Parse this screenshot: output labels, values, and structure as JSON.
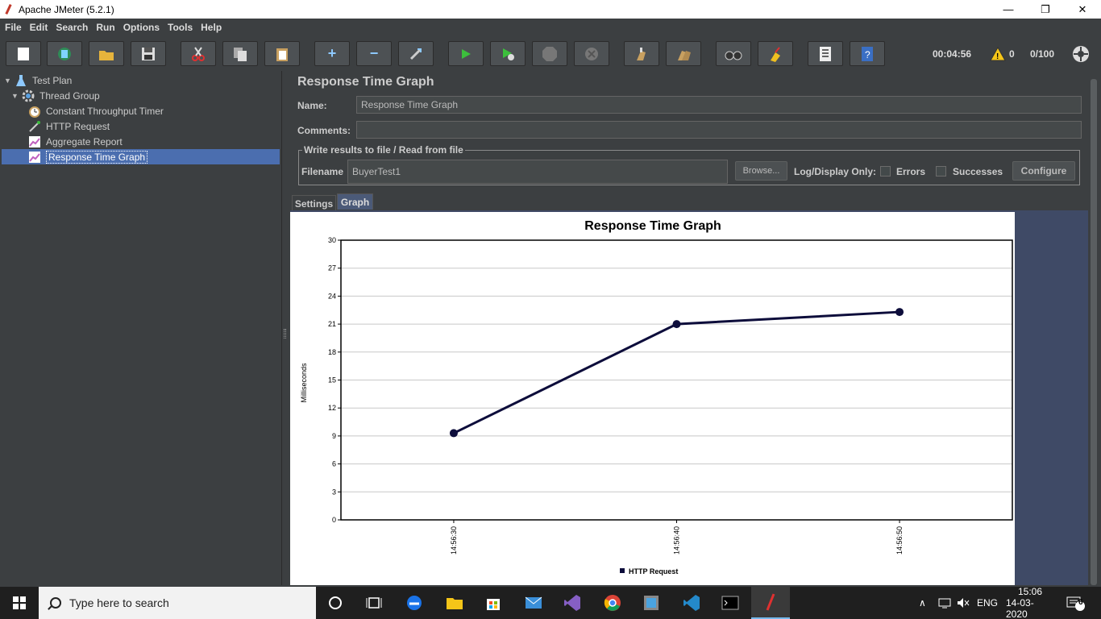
{
  "window": {
    "title": "Apache JMeter (5.2.1)"
  },
  "menu": [
    "File",
    "Edit",
    "Search",
    "Run",
    "Options",
    "Tools",
    "Help"
  ],
  "toolbar": {
    "elapsed": "00:04:56",
    "warnings": "0",
    "threads": "0/100"
  },
  "tree": [
    {
      "label": "Test Plan",
      "icon": "flask-icon"
    },
    {
      "label": "Thread Group",
      "icon": "gear-icon"
    },
    {
      "label": "Constant Throughput Timer",
      "icon": "stopwatch-icon"
    },
    {
      "label": "HTTP Request",
      "icon": "pipette-icon"
    },
    {
      "label": "Aggregate Report",
      "icon": "chart-icon"
    },
    {
      "label": "Response Time Graph",
      "icon": "chart-icon"
    }
  ],
  "panel": {
    "title": "Response Time Graph",
    "name_label": "Name:",
    "name_value": "Response Time Graph",
    "comments_label": "Comments:",
    "comments_value": "",
    "fieldset_legend": "Write results to file / Read from file",
    "filename_label": "Filename",
    "filename_value": "BuyerTest1",
    "browse_label": "Browse...",
    "log_display_label": "Log/Display Only:",
    "errors_label": "Errors",
    "successes_label": "Successes",
    "configure_label": "Configure"
  },
  "tabs": [
    "Settings",
    "Graph"
  ],
  "chart_data": {
    "type": "line",
    "title": "Response Time Graph",
    "xlabel": "",
    "ylabel": "Milliseconds",
    "ylim": [
      0,
      30
    ],
    "yticks": [
      0,
      3,
      6,
      9,
      12,
      15,
      18,
      21,
      24,
      27,
      30
    ],
    "x": [
      "14:56:30",
      "14:56:40",
      "14:56:50"
    ],
    "series": [
      {
        "name": "HTTP Request",
        "values": [
          9.3,
          21,
          22.3
        ],
        "color": "#0d0d3b"
      }
    ],
    "grid": true,
    "legend": "bottom-center"
  },
  "taskbar": {
    "search_placeholder": "Type here to search",
    "lang": "ENG",
    "time": "15:06",
    "date": "14-03-2020",
    "notifications": "6"
  }
}
